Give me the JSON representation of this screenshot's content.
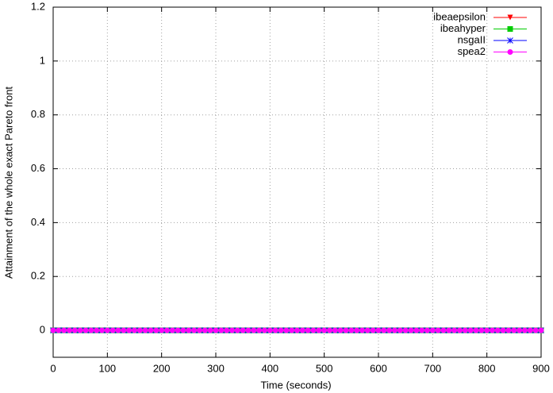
{
  "chart_data": {
    "type": "line",
    "xlabel": "Time (seconds)",
    "ylabel": "Attainment of the whole exact Pareto front",
    "xlim": [
      0,
      900
    ],
    "xticks": [
      0,
      100,
      200,
      300,
      400,
      500,
      600,
      700,
      800,
      900
    ],
    "ylim": [
      -0.1,
      1.2
    ],
    "yticks": [
      0,
      0.2,
      0.4,
      0.6,
      0.8,
      1,
      1.2
    ],
    "grid": true,
    "legend": "top-right",
    "x": [
      0,
      10,
      20,
      30,
      40,
      50,
      60,
      70,
      80,
      90,
      100,
      110,
      120,
      130,
      140,
      150,
      160,
      170,
      180,
      190,
      200,
      210,
      220,
      230,
      240,
      250,
      260,
      270,
      280,
      290,
      300,
      310,
      320,
      330,
      340,
      350,
      360,
      370,
      380,
      390,
      400,
      410,
      420,
      430,
      440,
      450,
      460,
      470,
      480,
      490,
      500,
      510,
      520,
      530,
      540,
      550,
      560,
      570,
      580,
      590,
      600,
      610,
      620,
      630,
      640,
      650,
      660,
      670,
      680,
      690,
      700,
      710,
      720,
      730,
      740,
      750,
      760,
      770,
      780,
      790,
      800,
      810,
      820,
      830,
      840,
      850,
      860,
      870,
      880,
      890,
      900
    ],
    "series": [
      {
        "name": "ibeaepsilon",
        "color": "#ff0000",
        "marker": "triangle-down",
        "values": [
          0,
          0,
          0,
          0,
          0,
          0,
          0,
          0,
          0,
          0,
          0,
          0,
          0,
          0,
          0,
          0,
          0,
          0,
          0,
          0,
          0,
          0,
          0,
          0,
          0,
          0,
          0,
          0,
          0,
          0,
          0,
          0,
          0,
          0,
          0,
          0,
          0,
          0,
          0,
          0,
          0,
          0,
          0,
          0,
          0,
          0,
          0,
          0,
          0,
          0,
          0,
          0,
          0,
          0,
          0,
          0,
          0,
          0,
          0,
          0,
          0,
          0,
          0,
          0,
          0,
          0,
          0,
          0,
          0,
          0,
          0,
          0,
          0,
          0,
          0,
          0,
          0,
          0,
          0,
          0,
          0,
          0,
          0,
          0,
          0,
          0,
          0,
          0,
          0,
          0,
          0
        ]
      },
      {
        "name": "ibeahyper",
        "color": "#00cc00",
        "marker": "square",
        "values": [
          0,
          0,
          0,
          0,
          0,
          0,
          0,
          0,
          0,
          0,
          0,
          0,
          0,
          0,
          0,
          0,
          0,
          0,
          0,
          0,
          0,
          0,
          0,
          0,
          0,
          0,
          0,
          0,
          0,
          0,
          0,
          0,
          0,
          0,
          0,
          0,
          0,
          0,
          0,
          0,
          0,
          0,
          0,
          0,
          0,
          0,
          0,
          0,
          0,
          0,
          0,
          0,
          0,
          0,
          0,
          0,
          0,
          0,
          0,
          0,
          0,
          0,
          0,
          0,
          0,
          0,
          0,
          0,
          0,
          0,
          0,
          0,
          0,
          0,
          0,
          0,
          0,
          0,
          0,
          0,
          0,
          0,
          0,
          0,
          0,
          0,
          0,
          0,
          0,
          0,
          0
        ]
      },
      {
        "name": "nsgaII",
        "color": "#0000ff",
        "marker": "star",
        "values": [
          0,
          0,
          0,
          0,
          0,
          0,
          0,
          0,
          0,
          0,
          0,
          0,
          0,
          0,
          0,
          0,
          0,
          0,
          0,
          0,
          0,
          0,
          0,
          0,
          0,
          0,
          0,
          0,
          0,
          0,
          0,
          0,
          0,
          0,
          0,
          0,
          0,
          0,
          0,
          0,
          0,
          0,
          0,
          0,
          0,
          0,
          0,
          0,
          0,
          0,
          0,
          0,
          0,
          0,
          0,
          0,
          0,
          0,
          0,
          0,
          0,
          0,
          0,
          0,
          0,
          0,
          0,
          0,
          0,
          0,
          0,
          0,
          0,
          0,
          0,
          0,
          0,
          0,
          0,
          0,
          0,
          0,
          0,
          0,
          0,
          0,
          0,
          0,
          0,
          0,
          0
        ]
      },
      {
        "name": "spea2",
        "color": "#ff00ff",
        "marker": "circle",
        "values": [
          0,
          0,
          0,
          0,
          0,
          0,
          0,
          0,
          0,
          0,
          0,
          0,
          0,
          0,
          0,
          0,
          0,
          0,
          0,
          0,
          0,
          0,
          0,
          0,
          0,
          0,
          0,
          0,
          0,
          0,
          0,
          0,
          0,
          0,
          0,
          0,
          0,
          0,
          0,
          0,
          0,
          0,
          0,
          0,
          0,
          0,
          0,
          0,
          0,
          0,
          0,
          0,
          0,
          0,
          0,
          0,
          0,
          0,
          0,
          0,
          0,
          0,
          0,
          0,
          0,
          0,
          0,
          0,
          0,
          0,
          0,
          0,
          0,
          0,
          0,
          0,
          0,
          0,
          0,
          0,
          0,
          0,
          0,
          0,
          0,
          0,
          0,
          0,
          0,
          0,
          0
        ]
      }
    ]
  }
}
